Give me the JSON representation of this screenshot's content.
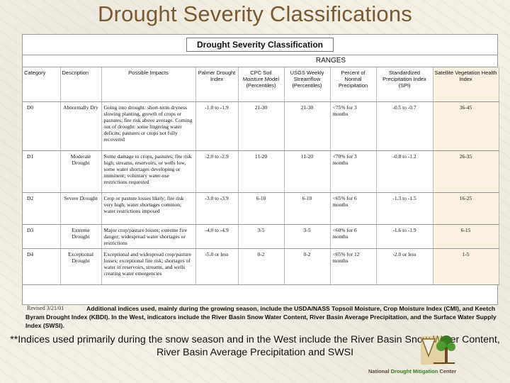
{
  "slide": {
    "title": "Drought Severity Classifications"
  },
  "table": {
    "heading": "Drought Severity Classification",
    "ranges_label": "RANGES",
    "columns": [
      "Category",
      "Description",
      "Possible Impacts",
      "Palmer Drought Index",
      "CPC Soil Moisture Model (Percentiles)",
      "USGS Weekly Streamflow (Percentiles)",
      "Percent of Normal Precipitation",
      "Standardized Precipitation Index (SPI)",
      "Satellite Vegetation Health Index"
    ],
    "rows": [
      [
        "D0",
        "Abnormally Dry",
        "Going into drought: short-term dryness slowing planting, growth of crops or pastures; fire risk above average. Coming out of drought: some lingering water deficits; pastures or crops not fully recovered",
        "-1.0 to -1.9",
        "21-30",
        "21-30",
        "<75% for 3 months",
        "-0.5 to -0.7",
        "36-45"
      ],
      [
        "D1",
        "Moderate Drought",
        "Some damage to crops, pastures; fire risk high; streams, reservoirs, or wells low, some water shortages developing or imminent; voluntary water-use restrictions requested",
        "-2.0 to -2.9",
        "11-20",
        "11-20",
        "<70% for 3 months",
        "-0.8 to -1.2",
        "26-35"
      ],
      [
        "D2",
        "Severe Drought",
        "Crop or pasture losses likely; fire risk very high; water shortages common; water restrictions imposed",
        "-3.0 to -3.9",
        "6-10",
        "6-10",
        "<65% for 6 months",
        "-1.3 to -1.5",
        "16-25"
      ],
      [
        "D3",
        "Extreme Drought",
        "Major crop/pasture losses; extreme fire danger; widespread water shortages or restrictions",
        "-4.0 to -4.9",
        "3-5",
        "3-5",
        "<60% for 6 months",
        "-1.6 to -1.9",
        "6-15"
      ],
      [
        "D4",
        "Exceptional Drought",
        "Exceptional and widespread crop/pasture losses; exceptional fire risk; shortages of water in reservoirs, streams, and wells creating water emergencies",
        "-5.0 or less",
        "0-2",
        "0-2",
        "<65% for 12 months",
        "-2.0 or less",
        "1-5"
      ]
    ],
    "revised": "Revised 3/21/01",
    "additional_note": "Additional indices used, mainly during the growing season, include the USDA/NASS Topsoil Moisture, Crop Moisture Index (CMI), and Keetch Byram Drought Index (KBDI). In the West, indicators include the River Basin Snow Water Content, River Basin Average Precipitation, and the Surface Water Supply Index (SWSI)."
  },
  "footnote": "**Indices used primarily during the snow season and in the West include the River Basin Snow Water Content, River Basin Average Precipitation and SWSI",
  "logo": {
    "part1": "National",
    "part2": "Drought Mitigation",
    "part3": "Center"
  },
  "colors": {
    "title": "#7a5a2e",
    "shaded_column": "#faf1e2",
    "logo_green": "#3a7a22"
  }
}
